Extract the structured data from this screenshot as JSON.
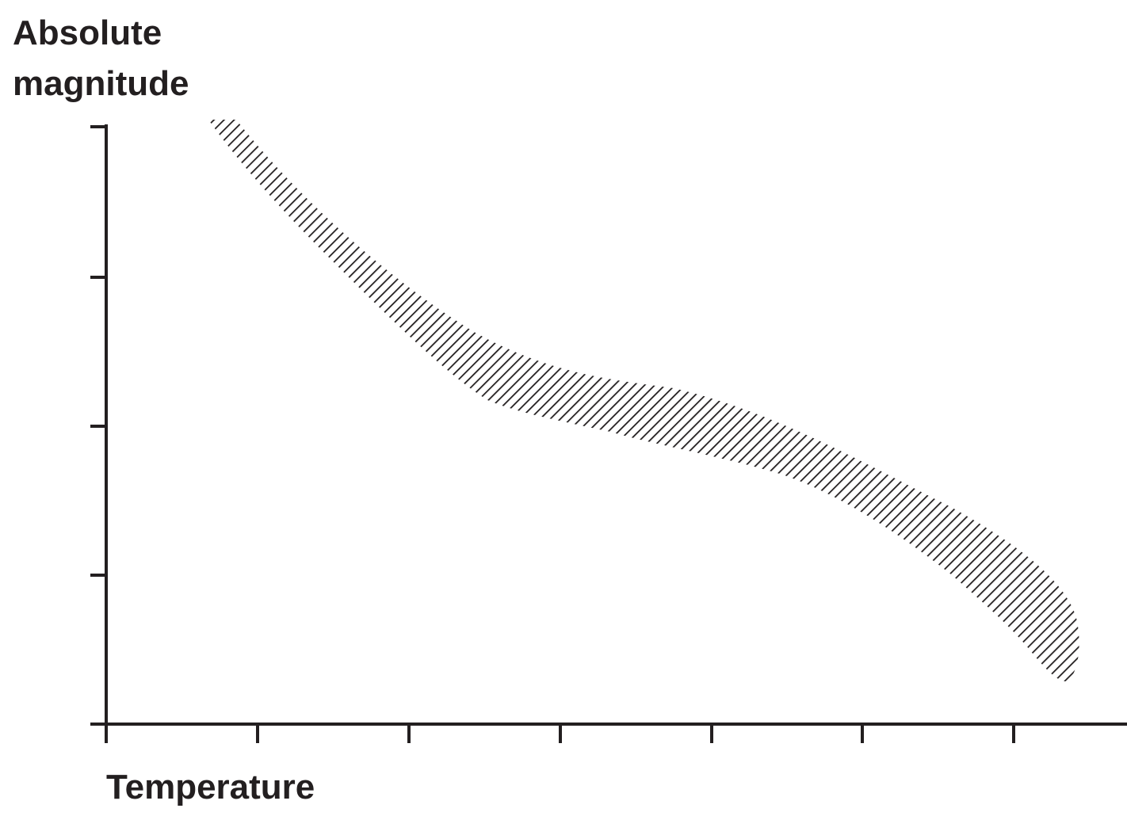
{
  "y_axis": {
    "label_line1": "Absolute",
    "label_line2": "magnitude"
  },
  "x_axis": {
    "label": "Temperature"
  },
  "band": {
    "fill": "hatched",
    "stroke_color": "#231f20"
  }
}
